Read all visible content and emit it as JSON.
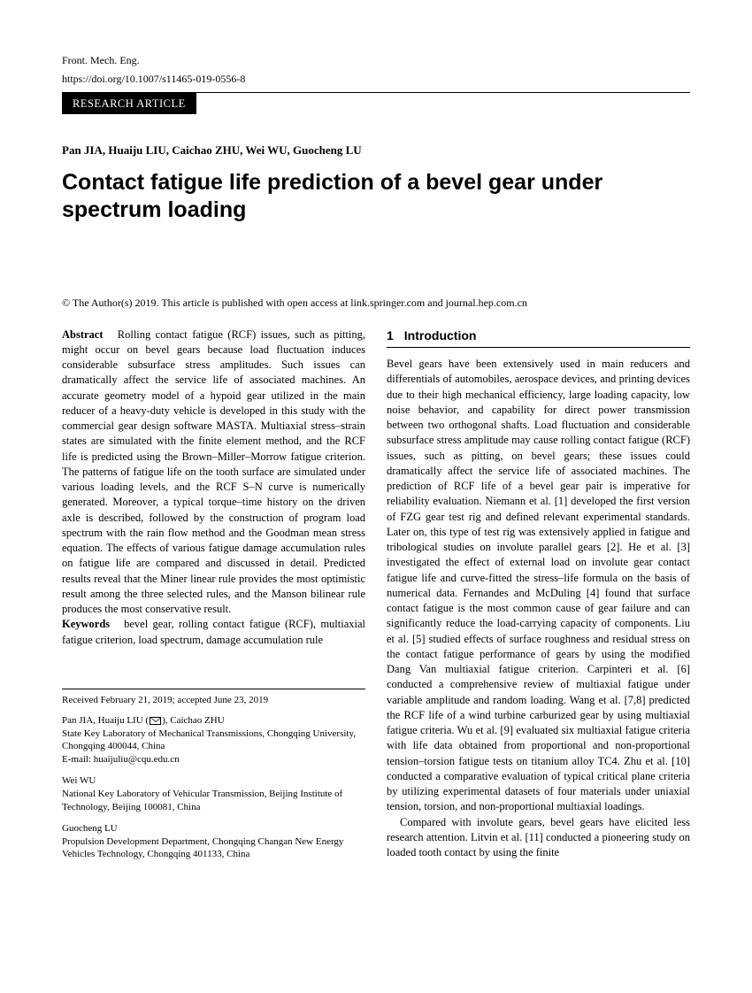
{
  "meta": {
    "journal": "Front. Mech. Eng.",
    "doi": "https://doi.org/10.1007/s11465-019-0556-8",
    "article_type": "RESEARCH ARTICLE"
  },
  "authors_line": "Pan JIA, Huaiju LIU, Caichao ZHU, Wei WU, Guocheng LU",
  "title": "Contact fatigue life prediction of a bevel gear under spectrum loading",
  "copyright": "© The Author(s) 2019. This article is published with open access at link.springer.com and journal.hep.com.cn",
  "abstract": {
    "label": "Abstract",
    "text": "Rolling contact fatigue (RCF) issues, such as pitting, might occur on bevel gears because load fluctuation induces considerable subsurface stress amplitudes. Such issues can dramatically affect the service life of associated machines. An accurate geometry model of a hypoid gear utilized in the main reducer of a heavy-duty vehicle is developed in this study with the commercial gear design software MASTA. Multiaxial stress–strain states are simulated with the finite element method, and the RCF life is predicted using the Brown–Miller–Morrow fatigue criterion. The patterns of fatigue life on the tooth surface are simulated under various loading levels, and the RCF S–N curve is numerically generated. Moreover, a typical torque–time history on the driven axle is described, followed by the construction of program load spectrum with the rain flow method and the Goodman mean stress equation. The effects of various fatigue damage accumulation rules on fatigue life are compared and discussed in detail. Predicted results reveal that the Miner linear rule provides the most optimistic result among the three selected rules, and the Manson bilinear rule produces the most conservative result."
  },
  "keywords": {
    "label": "Keywords",
    "text": "bevel gear, rolling contact fatigue (RCF), multiaxial fatigue criterion, load spectrum, damage accumulation rule"
  },
  "footnote": {
    "dates": "Received February 21, 2019; accepted June 23, 2019",
    "affil1_names": "Pan JIA, Huaiju LIU (",
    "affil1_names_after": "), Caichao ZHU",
    "affil1_body": "State Key Laboratory of Mechanical Transmissions, Chongqing University, Chongqing 400044, China",
    "affil1_email": "E-mail: huaijuliu@cqu.edu.cn",
    "affil2_names": "Wei WU",
    "affil2_body": "National Key Laboratory of Vehicular Transmission, Beijing Institute of Technology, Beijing 100081, China",
    "affil3_names": "Guocheng LU",
    "affil3_body": "Propulsion Development Department, Chongqing Changan New Energy Vehicles Technology, Chongqing 401133, China"
  },
  "section1": {
    "num": "1",
    "heading": "Introduction",
    "para1": "Bevel gears have been extensively used in main reducers and differentials of automobiles, aerospace devices, and printing devices due to their high mechanical efficiency, large loading capacity, low noise behavior, and capability for direct power transmission between two orthogonal shafts. Load fluctuation and considerable subsurface stress amplitude may cause rolling contact fatigue (RCF) issues, such as pitting, on bevel gears; these issues could dramatically affect the service life of associated machines. The prediction of RCF life of a bevel gear pair is imperative for reliability evaluation. Niemann et al. [1] developed the first version of FZG gear test rig and defined relevant experimental standards. Later on, this type of test rig was extensively applied in fatigue and tribological studies on involute parallel gears [2]. He et al. [3] investigated the effect of external load on involute gear contact fatigue life and curve-fitted the stress–life formula on the basis of numerical data. Fernandes and McDuling [4] found that surface contact fatigue is the most common cause of gear failure and can significantly reduce the load-carrying capacity of components. Liu et al. [5] studied effects of surface roughness and residual stress on the contact fatigue performance of gears by using the modified Dang Van multiaxial fatigue criterion. Carpinteri et al. [6] conducted a comprehensive review of multiaxial fatigue under variable amplitude and random loading. Wang et al. [7,8] predicted the RCF life of a wind turbine carburized gear by using multiaxial fatigue criteria. Wu et al. [9] evaluated six multiaxial fatigue criteria with life data obtained from proportional and non-proportional tension–torsion fatigue tests on titanium alloy TC4. Zhu et al. [10] conducted a comparative evaluation of typical critical plane criteria by utilizing experimental datasets of four materials under uniaxial tension, torsion, and non-proportional multiaxial loadings.",
    "para2": "Compared with involute gears, bevel gears have elicited less research attention. Litvin et al. [11] conducted a pioneering study on loaded tooth contact by using the finite"
  }
}
